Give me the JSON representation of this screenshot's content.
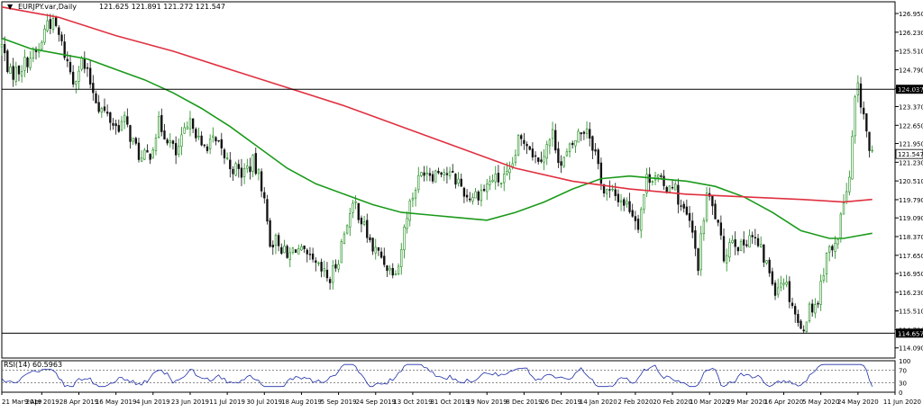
{
  "chart_data": {
    "type": "candlestick",
    "header": {
      "symbol": "EURJPY.var,Daily",
      "ohlc": "121.625 121.891 121.272 121.547"
    },
    "y_ticks": [
      "126.950",
      "126.230",
      "125.510",
      "124.790",
      "124.070",
      "123.370",
      "122.650",
      "121.950",
      "121.230",
      "120.510",
      "119.790",
      "119.090",
      "118.370",
      "117.650",
      "116.950",
      "116.230",
      "115.510",
      "114.790",
      "114.090"
    ],
    "ylim": [
      113.7,
      127.4
    ],
    "x_ticks": [
      {
        "label": "21 Mar 2019",
        "i": 0
      },
      {
        "label": "9 Apr 2019",
        "i": 14
      },
      {
        "label": "28 Apr 2019",
        "i": 27
      },
      {
        "label": "16 May 2019",
        "i": 40
      },
      {
        "label": "4 Jun 2019",
        "i": 53
      },
      {
        "label": "23 Jun 2019",
        "i": 66
      },
      {
        "label": "11 Jul 2019",
        "i": 79
      },
      {
        "label": "30 Jul 2019",
        "i": 92
      },
      {
        "label": "18 Aug 2019",
        "i": 105
      },
      {
        "label": "5 Sep 2019",
        "i": 118
      },
      {
        "label": "24 Sep 2019",
        "i": 131
      },
      {
        "label": "13 Oct 2019",
        "i": 144
      },
      {
        "label": "31 Oct 2019",
        "i": 157
      },
      {
        "label": "19 Nov 2019",
        "i": 170
      },
      {
        "label": "8 Dec 2019",
        "i": 183
      },
      {
        "label": "26 Dec 2019",
        "i": 196
      },
      {
        "label": "14 Jan 2020",
        "i": 209
      },
      {
        "label": "2 Feb 2020",
        "i": 222
      },
      {
        "label": "20 Feb 2020",
        "i": 235
      },
      {
        "label": "10 Mar 2020",
        "i": 248
      },
      {
        "label": "29 Mar 2020",
        "i": 261
      },
      {
        "label": "16 Apr 2020",
        "i": 274
      },
      {
        "label": "5 May 2020",
        "i": 287
      },
      {
        "label": "24 May 2020",
        "i": 300
      },
      {
        "label": "11 Jun 2020",
        "i": 313
      }
    ],
    "n_bars": 313,
    "close_anchors": [
      [
        0,
        125.7
      ],
      [
        3,
        124.6
      ],
      [
        6,
        124.8
      ],
      [
        10,
        125.3
      ],
      [
        13,
        125.5
      ],
      [
        16,
        126.7
      ],
      [
        19,
        126.4
      ],
      [
        22,
        125.4
      ],
      [
        25,
        124.4
      ],
      [
        28,
        125.1
      ],
      [
        31,
        124.3
      ],
      [
        34,
        123.4
      ],
      [
        37,
        123.0
      ],
      [
        40,
        122.6
      ],
      [
        43,
        122.8
      ],
      [
        46,
        122.0
      ],
      [
        49,
        121.3
      ],
      [
        52,
        121.6
      ],
      [
        55,
        122.7
      ],
      [
        58,
        122.2
      ],
      [
        61,
        121.5
      ],
      [
        64,
        122.3
      ],
      [
        67,
        122.8
      ],
      [
        70,
        121.7
      ],
      [
        73,
        122.1
      ],
      [
        76,
        121.8
      ],
      [
        80,
        121.1
      ],
      [
        84,
        120.8
      ],
      [
        88,
        121.2
      ],
      [
        91,
        120.4
      ],
      [
        94,
        118.2
      ],
      [
        97,
        118.2
      ],
      [
        100,
        117.5
      ],
      [
        103,
        118.0
      ],
      [
        106,
        117.6
      ],
      [
        109,
        117.3
      ],
      [
        112,
        117.0
      ],
      [
        115,
        116.7
      ],
      [
        118,
        117.6
      ],
      [
        121,
        119.0
      ],
      [
        124,
        119.6
      ],
      [
        127,
        118.7
      ],
      [
        130,
        117.9
      ],
      [
        133,
        117.6
      ],
      [
        136,
        117.1
      ],
      [
        139,
        117.3
      ],
      [
        142,
        119.3
      ],
      [
        145,
        120.3
      ],
      [
        148,
        121.0
      ],
      [
        151,
        120.8
      ],
      [
        154,
        121.0
      ],
      [
        157,
        120.7
      ],
      [
        160,
        120.5
      ],
      [
        163,
        119.9
      ],
      [
        166,
        120.0
      ],
      [
        169,
        120.2
      ],
      [
        172,
        120.6
      ],
      [
        175,
        120.5
      ],
      [
        178,
        120.7
      ],
      [
        181,
        122.0
      ],
      [
        184,
        122.1
      ],
      [
        187,
        121.4
      ],
      [
        190,
        121.6
      ],
      [
        193,
        122.3
      ],
      [
        196,
        121.1
      ],
      [
        199,
        121.7
      ],
      [
        202,
        122.3
      ],
      [
        205,
        122.6
      ],
      [
        208,
        121.6
      ],
      [
        211,
        120.1
      ],
      [
        214,
        120.0
      ],
      [
        217,
        119.8
      ],
      [
        220,
        119.5
      ],
      [
        223,
        118.9
      ],
      [
        226,
        120.6
      ],
      [
        229,
        120.8
      ],
      [
        232,
        120.2
      ],
      [
        235,
        120.5
      ],
      [
        238,
        119.5
      ],
      [
        241,
        118.9
      ],
      [
        244,
        117.3
      ],
      [
        247,
        120.0
      ],
      [
        250,
        119.2
      ],
      [
        253,
        117.6
      ],
      [
        256,
        118.4
      ],
      [
        259,
        117.9
      ],
      [
        262,
        118.5
      ],
      [
        265,
        118.0
      ],
      [
        268,
        117.3
      ],
      [
        271,
        116.4
      ],
      [
        274,
        116.8
      ],
      [
        277,
        115.8
      ],
      [
        280,
        114.7
      ],
      [
        283,
        115.6
      ],
      [
        286,
        115.9
      ],
      [
        289,
        117.8
      ],
      [
        292,
        117.9
      ],
      [
        295,
        119.7
      ],
      [
        297,
        120.5
      ],
      [
        299,
        123.6
      ],
      [
        300,
        124.0
      ],
      [
        302,
        123.1
      ],
      [
        304,
        121.6
      ],
      [
        305,
        121.5
      ]
    ],
    "series": [
      {
        "name": "",
        "role": "ma-fast",
        "color": "#1a9a1a",
        "points": [
          [
            0,
            126.0
          ],
          [
            10,
            125.6
          ],
          [
            20,
            125.4
          ],
          [
            30,
            125.2
          ],
          [
            40,
            124.8
          ],
          [
            50,
            124.4
          ],
          [
            60,
            123.9
          ],
          [
            70,
            123.3
          ],
          [
            80,
            122.6
          ],
          [
            90,
            121.8
          ],
          [
            100,
            121.0
          ],
          [
            110,
            120.4
          ],
          [
            120,
            120.0
          ],
          [
            130,
            119.6
          ],
          [
            140,
            119.3
          ],
          [
            150,
            119.2
          ],
          [
            160,
            119.1
          ],
          [
            170,
            119.0
          ],
          [
            180,
            119.3
          ],
          [
            190,
            119.7
          ],
          [
            200,
            120.2
          ],
          [
            210,
            120.6
          ],
          [
            220,
            120.7
          ],
          [
            230,
            120.6
          ],
          [
            240,
            120.5
          ],
          [
            250,
            120.3
          ],
          [
            260,
            119.9
          ],
          [
            270,
            119.3
          ],
          [
            280,
            118.6
          ],
          [
            290,
            118.3
          ],
          [
            295,
            118.3
          ],
          [
            300,
            118.4
          ],
          [
            305,
            118.5
          ]
        ]
      },
      {
        "name": "",
        "role": "ma-slow",
        "color": "#e03040",
        "points": [
          [
            0,
            127.2
          ],
          [
            20,
            126.8
          ],
          [
            40,
            126.1
          ],
          [
            60,
            125.5
          ],
          [
            80,
            124.8
          ],
          [
            100,
            124.1
          ],
          [
            120,
            123.4
          ],
          [
            140,
            122.6
          ],
          [
            160,
            121.8
          ],
          [
            180,
            121.0
          ],
          [
            200,
            120.5
          ],
          [
            220,
            120.2
          ],
          [
            240,
            120.0
          ],
          [
            260,
            119.9
          ],
          [
            280,
            119.8
          ],
          [
            295,
            119.7
          ],
          [
            305,
            119.8
          ]
        ]
      }
    ],
    "hlines": [
      {
        "value": 124.037,
        "label": "124.037",
        "color": "#000000"
      },
      {
        "value": 114.657,
        "label": "114.657",
        "color": "#000000"
      }
    ],
    "current_price": {
      "value": 121.547,
      "label": "121.547"
    },
    "rsi": {
      "title": "RSI(14) 60.5963",
      "ylim": [
        0,
        100
      ],
      "ticks": [
        "100",
        "70",
        "30",
        "0"
      ],
      "levels": [
        70,
        30
      ],
      "color": "#1f2fa8"
    },
    "colors": {
      "up": "#1a8a1a",
      "down": "#111111",
      "axis": "#000000",
      "grid": "none",
      "background": "#ffffff"
    }
  }
}
